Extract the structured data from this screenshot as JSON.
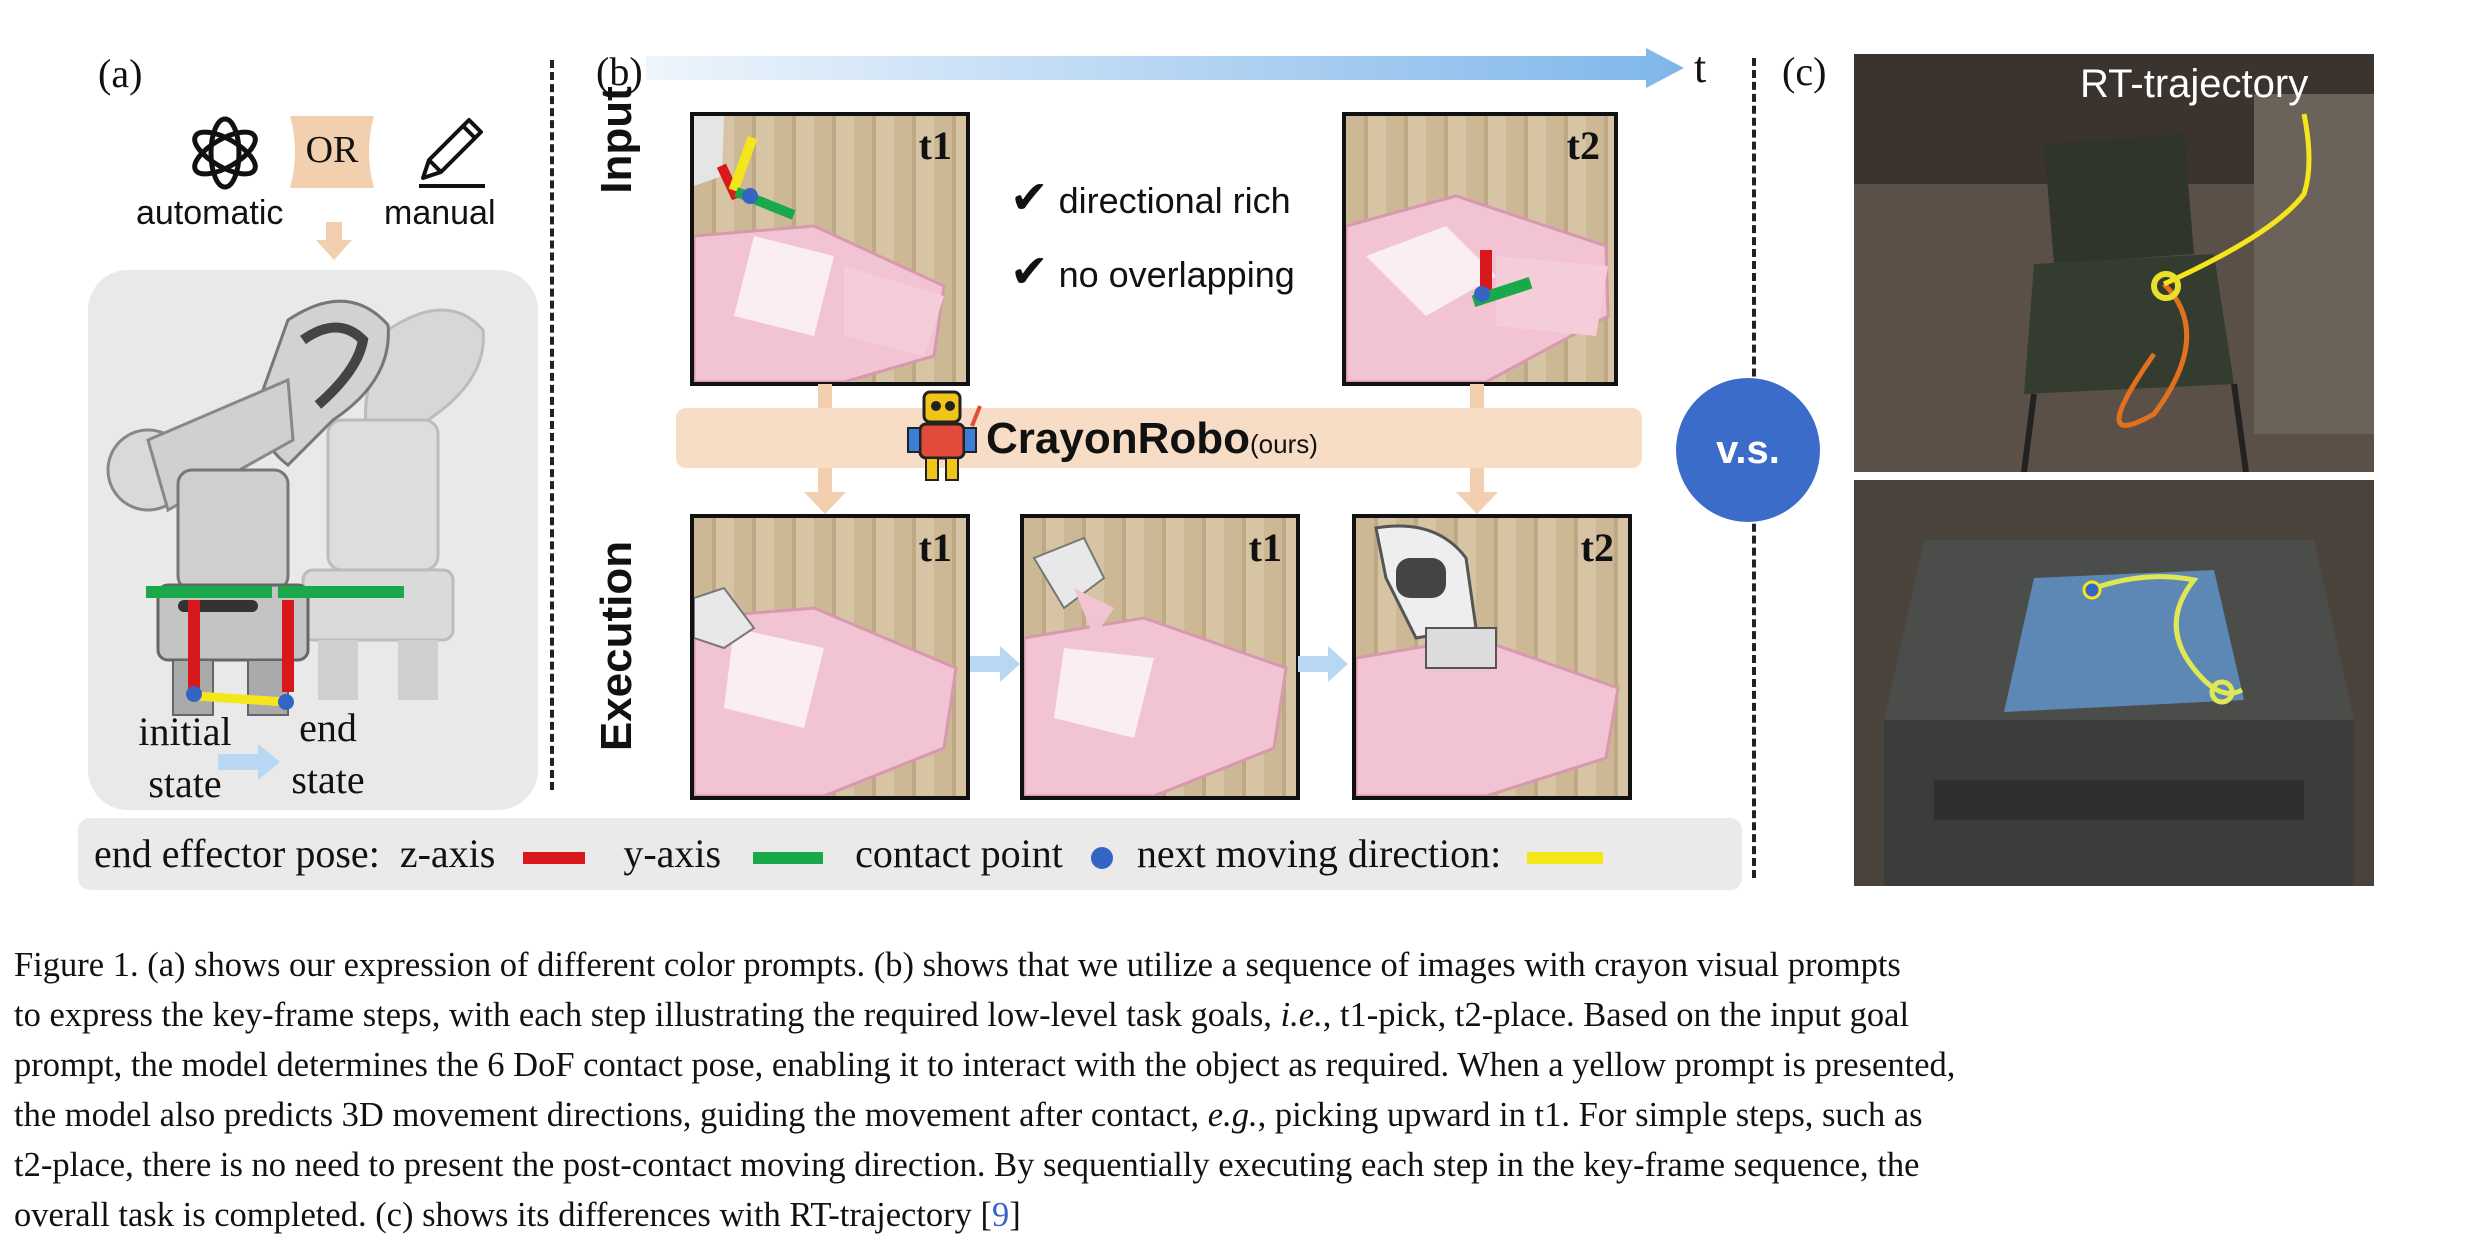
{
  "panels": {
    "a": {
      "label": "(a)",
      "automatic": "automatic",
      "or": "OR",
      "manual": "manual",
      "initial_state_1": "initial",
      "initial_state_2": "state",
      "end_state_1": "end",
      "end_state_2": "state"
    },
    "b": {
      "label": "(b)",
      "time_label": "t",
      "input_label": "Input",
      "execution_label": "Execution",
      "check_1": "directional rich",
      "check_2": "no overlapping",
      "method_name": "CrayonRobo",
      "method_suffix": "(ours)",
      "input_tags": [
        "t1",
        "t2"
      ],
      "exec_tags": [
        "t1",
        "t1",
        "t2"
      ]
    },
    "vs": "v.s.",
    "c": {
      "label": "(c)",
      "rt_label": "RT-trajectory"
    }
  },
  "legend": {
    "prefix": "end effector pose:",
    "z_axis": "z-axis",
    "y_axis": "y-axis",
    "contact": "contact point",
    "direction": "next moving direction:",
    "colors": {
      "z": "#d7191c",
      "y": "#19a84a",
      "contact": "#3464c4",
      "direction": "#f5e61b"
    }
  },
  "caption": {
    "line1": "Figure 1.  (a) shows our expression of different color prompts.  (b) shows that we utilize a sequence of images with crayon visual prompts",
    "line2_a": "to express the key-frame steps, with each step illustrating the required low-level task goals, ",
    "line2_ie": "i.e.",
    "line2_b": ", t1-pick, t2-place.  Based on the input goal",
    "line3": "prompt, the model determines the 6 DoF contact pose, enabling it to interact with the object as required.  When a yellow prompt is presented,",
    "line4_a": "the model also predicts 3D movement directions, guiding the movement after contact, ",
    "line4_eg": "e.g.",
    "line4_b": ", picking upward in t1.  For simple steps, such as",
    "line5": "t2-place, there is no need to present the post-contact moving direction.  By sequentially executing each step in the key-frame sequence, the",
    "line6_a": "overall task is completed.  (c) shows its differences with RT-trajectory [",
    "line6_cite": "9",
    "line6_b": "]"
  }
}
